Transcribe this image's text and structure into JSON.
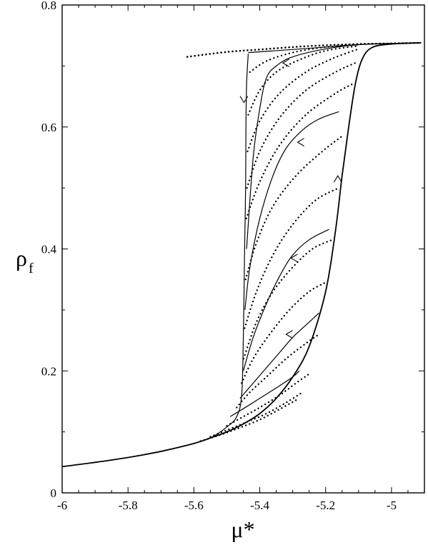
{
  "chart_data": {
    "type": "line",
    "title": "",
    "xlabel": "μ*",
    "ylabel_main": "ρ",
    "ylabel_sub": "f",
    "xlim": [
      -6.0,
      -4.9
    ],
    "ylim": [
      0.0,
      0.8
    ],
    "x_ticks": [
      -6,
      -5.8,
      -5.6,
      -5.4,
      -5.2,
      -5
    ],
    "x_tick_labels": [
      "-6",
      "-5.8",
      "-5.6",
      "-5.4",
      "-5.2",
      "-5"
    ],
    "y_ticks": [
      0,
      0.2,
      0.4,
      0.6,
      0.8
    ],
    "y_tick_labels": [
      "0",
      "0.2",
      "0.4",
      "0.6",
      "0.8"
    ],
    "grid": false,
    "legend": "none",
    "series": [
      {
        "style": "solid",
        "points": [
          [
            -6.0,
            0.043
          ],
          [
            -5.9,
            0.05
          ],
          [
            -5.8,
            0.058
          ],
          [
            -5.7,
            0.068
          ],
          [
            -5.6,
            0.081
          ],
          [
            -5.55,
            0.09
          ],
          [
            -5.5,
            0.1
          ],
          [
            -5.45,
            0.113
          ],
          [
            -5.4,
            0.13
          ],
          [
            -5.35,
            0.155
          ],
          [
            -5.3,
            0.19
          ],
          [
            -5.25,
            0.24
          ],
          [
            -5.2,
            0.33
          ],
          [
            -5.17,
            0.43
          ],
          [
            -5.15,
            0.52
          ],
          [
            -5.13,
            0.6
          ],
          [
            -5.11,
            0.67
          ],
          [
            -5.09,
            0.71
          ],
          [
            -5.06,
            0.73
          ],
          [
            -5.0,
            0.736
          ],
          [
            -4.91,
            0.738
          ]
        ],
        "arrows": [
          {
            "x": -5.163,
            "y": 0.52,
            "direction": "up"
          }
        ]
      },
      {
        "style": "solid",
        "points": [
          [
            -5.6,
            0.081
          ],
          [
            -5.55,
            0.09
          ],
          [
            -5.5,
            0.108
          ],
          [
            -5.47,
            0.125
          ],
          [
            -5.455,
            0.16
          ],
          [
            -5.45,
            0.25
          ],
          [
            -5.446,
            0.4
          ],
          [
            -5.443,
            0.5
          ],
          [
            -5.442,
            0.6
          ],
          [
            -5.44,
            0.67
          ],
          [
            -5.435,
            0.72
          ]
        ],
        "arrows": [
          {
            "x": -5.448,
            "y": 0.64,
            "direction": "down"
          }
        ]
      },
      {
        "style": "solid",
        "points": [
          [
            -5.435,
            0.722
          ],
          [
            -5.38,
            0.724
          ],
          [
            -5.3,
            0.727
          ],
          [
            -5.2,
            0.731
          ],
          [
            -5.1,
            0.735
          ],
          [
            -5.0,
            0.737
          ],
          [
            -4.91,
            0.738
          ]
        ],
        "arrows": []
      },
      {
        "style": "solid",
        "points": [
          [
            -5.44,
            0.4
          ],
          [
            -5.42,
            0.55
          ],
          [
            -5.4,
            0.63
          ],
          [
            -5.38,
            0.68
          ],
          [
            -5.35,
            0.7
          ],
          [
            -5.3,
            0.715
          ],
          [
            -5.2,
            0.728
          ],
          [
            -5.1,
            0.735
          ],
          [
            -5.0,
            0.737
          ]
        ],
        "arrows": [
          {
            "x": -5.33,
            "y": 0.705,
            "direction": "left"
          }
        ]
      },
      {
        "style": "solid",
        "points": [
          [
            -5.445,
            0.3
          ],
          [
            -5.43,
            0.37
          ],
          [
            -5.4,
            0.45
          ],
          [
            -5.36,
            0.52
          ],
          [
            -5.32,
            0.565
          ],
          [
            -5.27,
            0.595
          ],
          [
            -5.22,
            0.613
          ],
          [
            -5.16,
            0.625
          ]
        ],
        "arrows": [
          {
            "x": -5.285,
            "y": 0.575,
            "direction": "left"
          }
        ]
      },
      {
        "style": "solid",
        "points": [
          [
            -5.45,
            0.2
          ],
          [
            -5.42,
            0.255
          ],
          [
            -5.38,
            0.31
          ],
          [
            -5.34,
            0.355
          ],
          [
            -5.3,
            0.39
          ],
          [
            -5.25,
            0.415
          ],
          [
            -5.19,
            0.432
          ]
        ],
        "arrows": [
          {
            "x": -5.305,
            "y": 0.385,
            "direction": "left"
          }
        ]
      },
      {
        "style": "solid",
        "points": [
          [
            -5.46,
            0.155
          ],
          [
            -5.42,
            0.18
          ],
          [
            -5.38,
            0.205
          ],
          [
            -5.34,
            0.23
          ],
          [
            -5.3,
            0.255
          ],
          [
            -5.26,
            0.275
          ],
          [
            -5.22,
            0.295
          ]
        ],
        "arrows": [
          {
            "x": -5.32,
            "y": 0.26,
            "direction": "left"
          }
        ]
      },
      {
        "style": "solid",
        "points": [
          [
            -5.49,
            0.125
          ],
          [
            -5.45,
            0.138
          ],
          [
            -5.4,
            0.155
          ],
          [
            -5.35,
            0.172
          ],
          [
            -5.3,
            0.19
          ],
          [
            -5.28,
            0.2
          ]
        ],
        "arrows": []
      },
      {
        "style": "dotted",
        "points": [
          [
            -5.62,
            0.715
          ],
          [
            -5.5,
            0.723
          ],
          [
            -5.4,
            0.727
          ],
          [
            -5.3,
            0.731
          ],
          [
            -5.2,
            0.734
          ],
          [
            -5.1,
            0.736
          ],
          [
            -5.0,
            0.737
          ],
          [
            -4.91,
            0.738
          ]
        ],
        "arrows": []
      },
      {
        "style": "dotted-family",
        "note_free": true,
        "curves": [
          [
            [
              -5.43,
              0.69
            ],
            [
              -5.38,
              0.708
            ],
            [
              -5.3,
              0.722
            ],
            [
              -5.2,
              0.731
            ],
            [
              -5.1,
              0.735
            ]
          ],
          [
            [
              -5.435,
              0.62
            ],
            [
              -5.4,
              0.66
            ],
            [
              -5.35,
              0.69
            ],
            [
              -5.28,
              0.71
            ],
            [
              -5.2,
              0.725
            ],
            [
              -5.1,
              0.733
            ]
          ],
          [
            [
              -5.437,
              0.56
            ],
            [
              -5.4,
              0.61
            ],
            [
              -5.34,
              0.655
            ],
            [
              -5.26,
              0.69
            ],
            [
              -5.18,
              0.712
            ],
            [
              -5.1,
              0.728
            ]
          ],
          [
            [
              -5.439,
              0.5
            ],
            [
              -5.4,
              0.56
            ],
            [
              -5.34,
              0.615
            ],
            [
              -5.26,
              0.66
            ],
            [
              -5.17,
              0.69
            ],
            [
              -5.11,
              0.705
            ]
          ],
          [
            [
              -5.441,
              0.45
            ],
            [
              -5.4,
              0.51
            ],
            [
              -5.34,
              0.57
            ],
            [
              -5.26,
              0.62
            ],
            [
              -5.17,
              0.655
            ],
            [
              -5.12,
              0.67
            ]
          ],
          [
            [
              -5.443,
              0.35
            ],
            [
              -5.41,
              0.41
            ],
            [
              -5.36,
              0.47
            ],
            [
              -5.29,
              0.52
            ],
            [
              -5.21,
              0.56
            ],
            [
              -5.15,
              0.585
            ]
          ],
          [
            [
              -5.446,
              0.27
            ],
            [
              -5.41,
              0.33
            ],
            [
              -5.36,
              0.39
            ],
            [
              -5.3,
              0.44
            ],
            [
              -5.23,
              0.48
            ],
            [
              -5.16,
              0.5
            ]
          ],
          [
            [
              -5.449,
              0.22
            ],
            [
              -5.41,
              0.28
            ],
            [
              -5.36,
              0.33
            ],
            [
              -5.3,
              0.37
            ],
            [
              -5.24,
              0.4
            ],
            [
              -5.18,
              0.415
            ]
          ],
          [
            [
              -5.455,
              0.18
            ],
            [
              -5.42,
              0.22
            ],
            [
              -5.37,
              0.26
            ],
            [
              -5.31,
              0.3
            ],
            [
              -5.25,
              0.33
            ],
            [
              -5.2,
              0.345
            ]
          ],
          [
            [
              -5.47,
              0.14
            ],
            [
              -5.43,
              0.165
            ],
            [
              -5.38,
              0.19
            ],
            [
              -5.32,
              0.22
            ],
            [
              -5.26,
              0.245
            ],
            [
              -5.22,
              0.26
            ]
          ],
          [
            [
              -5.5,
              0.11
            ],
            [
              -5.45,
              0.125
            ],
            [
              -5.4,
              0.14
            ],
            [
              -5.34,
              0.16
            ],
            [
              -5.29,
              0.18
            ],
            [
              -5.25,
              0.195
            ]
          ],
          [
            [
              -5.55,
              0.092
            ],
            [
              -5.5,
              0.103
            ],
            [
              -5.44,
              0.116
            ],
            [
              -5.38,
              0.13
            ],
            [
              -5.32,
              0.148
            ],
            [
              -5.27,
              0.165
            ]
          ],
          [
            [
              -5.58,
              0.085
            ],
            [
              -5.52,
              0.095
            ],
            [
              -5.46,
              0.107
            ],
            [
              -5.4,
              0.12
            ],
            [
              -5.34,
              0.137
            ],
            [
              -5.28,
              0.155
            ]
          ]
        ]
      }
    ]
  }
}
